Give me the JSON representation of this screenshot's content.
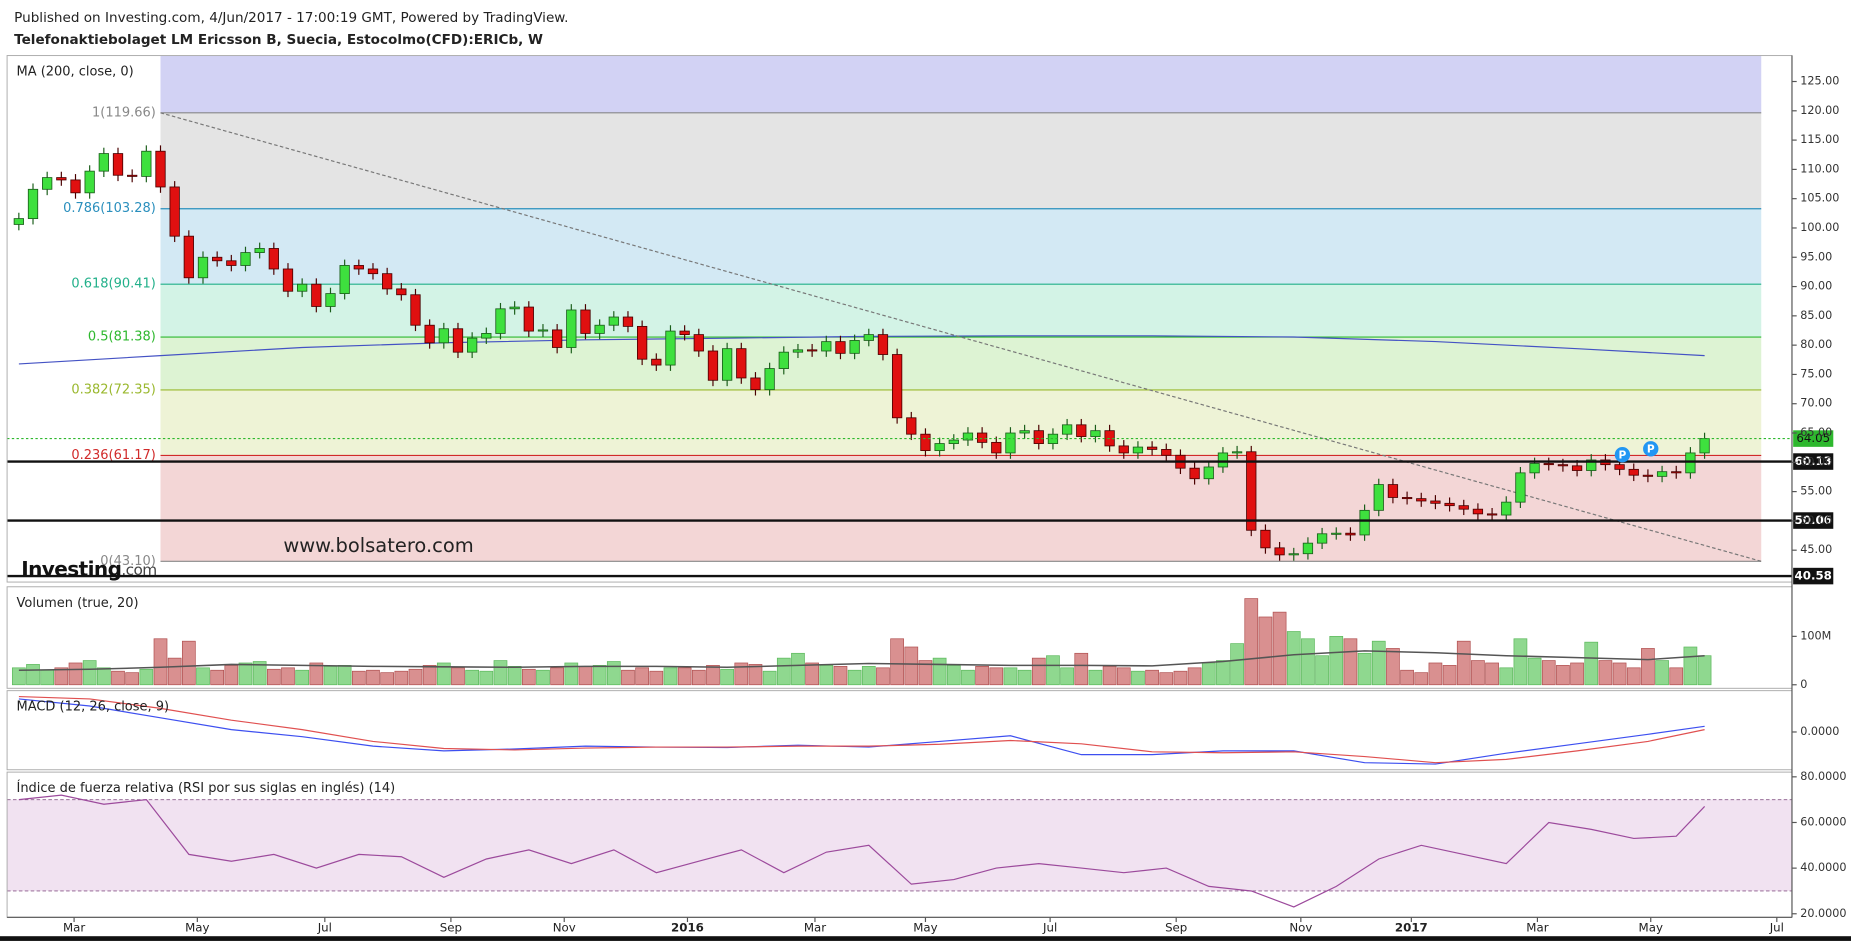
{
  "header": {
    "published": "Published on Investing.com, 4/Jun/2017 - 17:00:19 GMT, Powered by TradingView.",
    "watermark": "www.bolsatero.com",
    "logo": "Investing",
    "logo_suffix": ".com"
  },
  "chart_data": [
    {
      "type": "candlestick",
      "title": "Telefonaktiebolaget LM Ericsson B, Suecia, Estocolmo(CFD):ERICb, W",
      "xlim": [
        -0.83,
        125.17
      ],
      "ylim": [
        39.56,
        129.43
      ],
      "yticks": [
        {
          "value": 45,
          "label": "45.00"
        },
        {
          "value": 50,
          "label": "50.00"
        },
        {
          "value": 55,
          "label": "55.00"
        },
        {
          "value": 60,
          "label": "60.00"
        },
        {
          "value": 65,
          "label": "65.00"
        },
        {
          "value": 70,
          "label": "70.00"
        },
        {
          "value": 75,
          "label": "75.00"
        },
        {
          "value": 80,
          "label": "80.00"
        },
        {
          "value": 85,
          "label": "85.00"
        },
        {
          "value": 90,
          "label": "90.00"
        },
        {
          "value": 95,
          "label": "95.00"
        },
        {
          "value": 100,
          "label": "100.00"
        },
        {
          "value": 105,
          "label": "105.00"
        },
        {
          "value": 110,
          "label": "110.00"
        },
        {
          "value": 115,
          "label": "115.00"
        },
        {
          "value": 120,
          "label": "120.00"
        },
        {
          "value": 125,
          "label": "125.00"
        }
      ],
      "up_color": "#3ee03e",
      "down_color": "#e01010",
      "open": [
        100.6,
        101.6,
        106.6,
        108.6,
        108.2,
        106.0,
        109.7,
        112.7,
        109.0,
        108.8,
        113.1,
        107.0,
        98.6,
        91.5,
        95.0,
        94.4,
        93.6,
        95.8,
        96.5,
        93.0,
        89.2,
        90.4,
        86.6,
        88.8,
        93.6,
        93.0,
        92.2,
        89.6,
        88.6,
        83.4,
        80.4,
        82.8,
        78.8,
        81.2,
        82.0,
        86.2,
        86.5,
        82.4,
        82.6,
        79.6,
        86.0,
        82.0,
        83.4,
        84.8,
        83.2,
        77.6,
        76.6,
        82.4,
        81.8,
        79.0,
        74.0,
        79.4,
        74.4,
        72.4,
        76.0,
        78.8,
        79.2,
        79.0,
        80.6,
        78.6,
        80.8,
        81.8,
        78.4,
        67.6,
        64.8,
        62.0,
        63.2,
        63.8,
        65.0,
        63.4,
        61.6,
        65.0,
        65.4,
        63.2,
        64.8,
        66.4,
        64.4,
        65.4,
        62.8,
        61.6,
        62.6,
        62.2,
        61.2,
        59.0,
        57.2,
        59.2,
        61.6,
        61.8,
        48.4,
        45.4,
        44.2,
        44.4,
        46.2,
        47.8,
        47.9,
        47.6,
        51.8,
        56.2,
        54.0,
        53.8,
        53.4,
        53.0,
        52.6,
        52.0,
        51.2,
        51.0,
        53.2,
        58.2,
        59.8,
        59.6,
        59.4,
        58.6,
        60.4,
        59.6,
        58.8,
        57.8,
        57.6,
        58.4,
        58.2,
        61.6
      ],
      "high": [
        102.6,
        107.6,
        109.6,
        109.6,
        109.2,
        110.7,
        113.7,
        113.7,
        110.0,
        114.1,
        114.1,
        108.0,
        99.6,
        96.0,
        96.0,
        95.4,
        96.8,
        97.5,
        97.5,
        94.0,
        91.4,
        91.4,
        89.8,
        94.6,
        94.6,
        94.0,
        93.2,
        90.6,
        89.6,
        84.4,
        83.8,
        83.8,
        82.2,
        83.0,
        87.2,
        87.5,
        87.5,
        83.6,
        83.6,
        87.0,
        87.0,
        84.4,
        85.8,
        85.8,
        84.2,
        78.6,
        83.4,
        83.4,
        82.8,
        80.0,
        80.4,
        80.4,
        75.4,
        77.0,
        79.8,
        80.2,
        80.2,
        81.6,
        81.6,
        81.8,
        82.8,
        82.8,
        79.4,
        68.6,
        65.8,
        64.2,
        64.8,
        66.0,
        66.0,
        64.4,
        66.0,
        66.4,
        66.4,
        65.8,
        67.4,
        67.4,
        66.4,
        66.4,
        63.8,
        63.6,
        63.6,
        63.2,
        62.2,
        60.0,
        60.2,
        62.6,
        62.8,
        62.8,
        49.4,
        46.4,
        45.4,
        47.2,
        48.8,
        48.9,
        48.9,
        52.8,
        57.2,
        57.2,
        55.0,
        54.8,
        54.4,
        54.0,
        53.6,
        53.0,
        52.2,
        54.2,
        59.2,
        60.8,
        60.8,
        60.6,
        60.4,
        61.4,
        61.4,
        60.6,
        59.8,
        58.8,
        59.4,
        59.4,
        62.6,
        65.05
      ],
      "low": [
        99.6,
        100.6,
        105.6,
        107.2,
        105.0,
        105.0,
        108.7,
        108.0,
        107.8,
        107.8,
        106.0,
        97.6,
        90.5,
        90.5,
        93.4,
        92.6,
        92.6,
        94.8,
        92.0,
        88.2,
        88.2,
        85.6,
        85.6,
        87.8,
        92.0,
        91.2,
        88.6,
        87.6,
        82.4,
        79.4,
        79.4,
        77.8,
        77.8,
        80.2,
        81.0,
        85.2,
        81.4,
        81.4,
        78.6,
        78.6,
        81.0,
        81.0,
        82.4,
        82.2,
        76.6,
        75.6,
        75.6,
        80.8,
        78.0,
        73.0,
        73.0,
        73.4,
        71.4,
        71.4,
        75.0,
        77.8,
        78.0,
        78.0,
        77.6,
        77.6,
        79.8,
        77.4,
        66.6,
        63.8,
        61.0,
        61.0,
        62.2,
        62.8,
        62.4,
        60.6,
        60.6,
        64.0,
        62.2,
        62.2,
        63.8,
        63.4,
        63.4,
        61.8,
        60.6,
        60.6,
        61.2,
        60.2,
        58.0,
        56.2,
        56.2,
        58.2,
        60.6,
        47.4,
        44.4,
        43.2,
        43.2,
        43.4,
        45.2,
        46.8,
        46.6,
        46.6,
        50.8,
        53.0,
        52.8,
        52.4,
        52.0,
        51.6,
        51.0,
        50.2,
        50.0,
        50.0,
        52.2,
        57.2,
        58.6,
        58.4,
        57.6,
        57.6,
        58.6,
        57.8,
        56.8,
        56.6,
        56.6,
        57.2,
        57.2,
        60.6
      ],
      "close": [
        101.6,
        106.6,
        108.6,
        108.2,
        106.0,
        109.7,
        112.7,
        109.0,
        108.8,
        113.1,
        107.0,
        98.6,
        91.5,
        95.0,
        94.4,
        93.6,
        95.8,
        96.5,
        93.0,
        89.2,
        90.4,
        86.6,
        88.8,
        93.6,
        93.0,
        92.2,
        89.6,
        88.6,
        83.4,
        80.4,
        82.8,
        78.8,
        81.2,
        82.0,
        86.2,
        86.5,
        82.4,
        82.6,
        79.6,
        86.0,
        82.0,
        83.4,
        84.8,
        83.2,
        77.6,
        76.6,
        82.4,
        81.8,
        79.0,
        74.0,
        79.4,
        74.4,
        72.4,
        76.0,
        78.8,
        79.2,
        79.0,
        80.6,
        78.6,
        80.8,
        81.8,
        78.4,
        67.6,
        64.8,
        62.0,
        63.2,
        63.8,
        65.0,
        63.4,
        61.6,
        65.0,
        65.4,
        63.2,
        64.8,
        66.4,
        64.4,
        65.4,
        62.8,
        61.6,
        62.6,
        62.2,
        61.2,
        59.0,
        57.2,
        59.2,
        61.6,
        61.8,
        48.4,
        45.4,
        44.2,
        44.4,
        46.2,
        47.8,
        47.9,
        47.6,
        51.8,
        56.2,
        54.0,
        53.8,
        53.4,
        53.0,
        52.6,
        52.0,
        51.2,
        51.0,
        53.2,
        58.2,
        59.8,
        59.6,
        59.4,
        58.6,
        60.4,
        59.6,
        58.8,
        57.8,
        57.6,
        58.4,
        58.2,
        61.6,
        64.05
      ],
      "series": [
        {
          "name": "MA (200, close, 0)",
          "color": "#4452c4",
          "x": [
            0,
            10,
            20,
            30,
            40,
            50,
            60,
            70,
            80,
            90,
            100,
            110,
            119
          ],
          "values": [
            76.8,
            78.2,
            79.6,
            80.4,
            80.9,
            81.2,
            81.5,
            81.6,
            81.6,
            81.4,
            80.6,
            79.4,
            78.2
          ]
        }
      ],
      "fib_x": [
        10,
        123
      ],
      "top_band_color": "#d2d2f4",
      "fib_levels": [
        {
          "label": "1(119.66)",
          "value": 119.66,
          "color": "#888888",
          "fill": "#e4e4e4"
        },
        {
          "label": "0.786(103.28)",
          "value": 103.28,
          "color": "#2a8fbd",
          "fill": "#d3e9f4"
        },
        {
          "label": "0.618(90.41)",
          "value": 90.41,
          "color": "#22b08a",
          "fill": "#d3f3e6"
        },
        {
          "label": "0.5(81.38)",
          "value": 81.38,
          "color": "#2eb82e",
          "fill": "#ddf3d3"
        },
        {
          "label": "0.382(72.35)",
          "value": 72.35,
          "color": "#9ab82e",
          "fill": "#eef3d6"
        },
        {
          "label": "0.236(61.17)",
          "value": 61.17,
          "color": "#d12a2a",
          "fill": "#f3d6d6"
        },
        {
          "label": "0(43.10)",
          "value": 43.1,
          "color": "#888888"
        }
      ],
      "trendline": {
        "x": [
          10,
          123
        ],
        "y": [
          119.66,
          43.1
        ]
      },
      "levels": [
        60.13,
        50.06,
        40.58
      ],
      "last_color": "#2eb82e",
      "markers": [
        {
          "x": 113.2,
          "y": 61.3,
          "label": "P"
        },
        {
          "x": 115.2,
          "y": 62.3,
          "label": "P"
        }
      ]
    },
    {
      "type": "bar",
      "title": "Volumen (true, 20)",
      "xlim": [
        -0.83,
        125.17
      ],
      "ylim": [
        -7.3,
        202.4
      ],
      "yticks": [
        0,
        {
          "value": 100,
          "label": "100M"
        }
      ],
      "up_color": "#8fd88f",
      "down_color": "#d99090",
      "values": [
        35,
        42,
        30,
        35,
        45,
        50,
        35,
        28,
        25,
        32,
        95,
        55,
        90,
        35,
        30,
        40,
        45,
        48,
        32,
        35,
        30,
        45,
        38,
        40,
        28,
        30,
        25,
        28,
        32,
        40,
        45,
        35,
        30,
        28,
        50,
        38,
        32,
        30,
        35,
        45,
        38,
        40,
        48,
        30,
        35,
        28,
        35,
        35,
        30,
        40,
        32,
        45,
        42,
        28,
        55,
        65,
        45,
        40,
        38,
        30,
        38,
        35,
        95,
        78,
        50,
        55,
        40,
        30,
        38,
        35,
        35,
        30,
        55,
        60,
        35,
        65,
        30,
        38,
        35,
        28,
        30,
        25,
        28,
        35,
        45,
        50,
        85,
        178,
        140,
        150,
        110,
        95,
        60,
        100,
        95,
        65,
        90,
        75,
        30,
        25,
        45,
        40,
        90,
        50,
        45,
        35,
        95,
        55,
        50,
        40,
        45,
        88,
        50,
        45,
        35,
        75,
        50,
        35,
        78,
        60
      ],
      "series": [
        {
          "color": "#555555",
          "x": [
            0,
            5,
            10,
            15,
            20,
            25,
            30,
            35,
            40,
            45,
            50,
            55,
            60,
            65,
            70,
            75,
            80,
            85,
            90,
            95,
            100,
            105,
            110,
            115,
            119
          ],
          "values": [
            30,
            32,
            36,
            42,
            40,
            38,
            37,
            36,
            38,
            38,
            36,
            40,
            44,
            42,
            40,
            40,
            39,
            48,
            62,
            70,
            66,
            60,
            56,
            52,
            60
          ]
        }
      ]
    },
    {
      "type": "line",
      "title": "MACD (12, 26, close, 9)",
      "xlim": [
        -0.83,
        125.17
      ],
      "ylim": [
        -8,
        8.75
      ],
      "yticks": [
        {
          "value": 0,
          "label": "0.0000"
        }
      ],
      "series": [
        {
          "color": "#3d4ff0",
          "x": [
            0,
            5,
            10,
            15,
            20,
            25,
            30,
            35,
            40,
            45,
            50,
            55,
            60,
            65,
            70,
            75,
            80,
            85,
            90,
            95,
            100,
            105,
            110,
            115,
            119
          ],
          "values": [
            7,
            5.5,
            3,
            0.5,
            -1,
            -3,
            -4,
            -3.6,
            -3,
            -3.2,
            -3.3,
            -2.8,
            -3.2,
            -2,
            -0.8,
            -4.8,
            -4.8,
            -4,
            -4,
            -6.5,
            -6.8,
            -4.5,
            -2.5,
            -0.5,
            1.2
          ]
        },
        {
          "color": "#e05050",
          "x": [
            0,
            5,
            10,
            15,
            20,
            25,
            30,
            35,
            40,
            45,
            50,
            55,
            60,
            65,
            70,
            75,
            80,
            85,
            90,
            95,
            100,
            105,
            110,
            115,
            119
          ],
          "values": [
            7.5,
            7,
            5,
            2.5,
            0.5,
            -2,
            -3.5,
            -3.8,
            -3.4,
            -3.2,
            -3.2,
            -3,
            -3,
            -2.6,
            -1.8,
            -2.5,
            -4.2,
            -4.4,
            -4.2,
            -5.2,
            -6.5,
            -5.8,
            -4,
            -2,
            0.5
          ]
        }
      ]
    },
    {
      "type": "line",
      "title": "Índice de fuerza relativa (RSI por sus siglas en inglés) (14)",
      "xlim": [
        -0.83,
        125.17
      ],
      "ylim": [
        18.45,
        82.07
      ],
      "yticks": [
        {
          "value": 80,
          "label": "80.0000"
        },
        {
          "value": 60,
          "label": "60.0000"
        },
        {
          "value": 40,
          "label": "40.0000"
        },
        {
          "value": 20,
          "label": "20.0000"
        }
      ],
      "bands": [
        30,
        70
      ],
      "band_color": "#f1e2f1",
      "series": [
        {
          "color": "#9c4a9c",
          "x": [
            0,
            3,
            6,
            9,
            12,
            15,
            18,
            21,
            24,
            27,
            30,
            33,
            36,
            39,
            42,
            45,
            48,
            51,
            54,
            57,
            60,
            63,
            66,
            69,
            72,
            75,
            78,
            81,
            84,
            87,
            90,
            93,
            96,
            99,
            102,
            105,
            108,
            111,
            114,
            117,
            119
          ],
          "values": [
            70,
            72,
            68,
            70,
            46,
            43,
            46,
            40,
            46,
            45,
            36,
            44,
            48,
            42,
            48,
            38,
            43,
            48,
            38,
            47,
            50,
            33,
            35,
            40,
            42,
            40,
            38,
            40,
            32,
            30,
            23,
            32,
            44,
            50,
            46,
            42,
            60,
            57,
            53,
            54,
            67
          ]
        }
      ],
      "xticks": [
        {
          "value": 3.9,
          "label": "Mar"
        },
        {
          "value": 12.6,
          "label": "May"
        },
        {
          "value": 21.6,
          "label": "Jul"
        },
        {
          "value": 30.5,
          "label": "Sep"
        },
        {
          "value": 38.5,
          "label": "Nov"
        },
        {
          "value": 47.2,
          "label": "2016"
        },
        {
          "value": 56.2,
          "label": "Mar"
        },
        {
          "value": 64,
          "label": "May"
        },
        {
          "value": 72.8,
          "label": "Jul"
        },
        {
          "value": 81.7,
          "label": "Sep"
        },
        {
          "value": 90.5,
          "label": "Nov"
        },
        {
          "value": 98.3,
          "label": "2017"
        },
        {
          "value": 107.2,
          "label": "Mar"
        },
        {
          "value": 115.2,
          "label": "May"
        },
        {
          "value": 124.1,
          "label": "Jul"
        }
      ]
    }
  ]
}
